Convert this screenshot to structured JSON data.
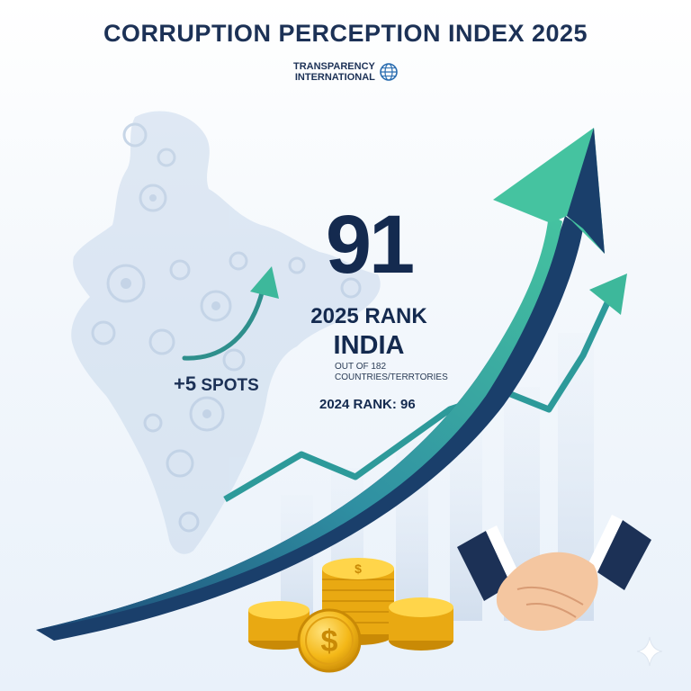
{
  "title": "CORRUPTION PERCEPTION INDEX 2025",
  "logo": {
    "line1": "TRANSPARENCY",
    "line2": "INTERNATIONAL",
    "icon": "globe-icon"
  },
  "rank": {
    "value": "91",
    "label": "2025 RANK",
    "country": "INDIA",
    "out_of": "OUT OF 182 COUNTRIES/TERRTORIES",
    "previous": "2024 RANK: 96"
  },
  "change": {
    "value": "+5",
    "unit": "SPOTS"
  },
  "colors": {
    "navy": "#142a4f",
    "teal": "#3db89b",
    "arrow_dark": "#1a3f6b",
    "gold": "#f2b418"
  },
  "icons": [
    "india-map-gears",
    "growth-arrow",
    "coin-stack",
    "handshake",
    "sparkle-icon"
  ]
}
